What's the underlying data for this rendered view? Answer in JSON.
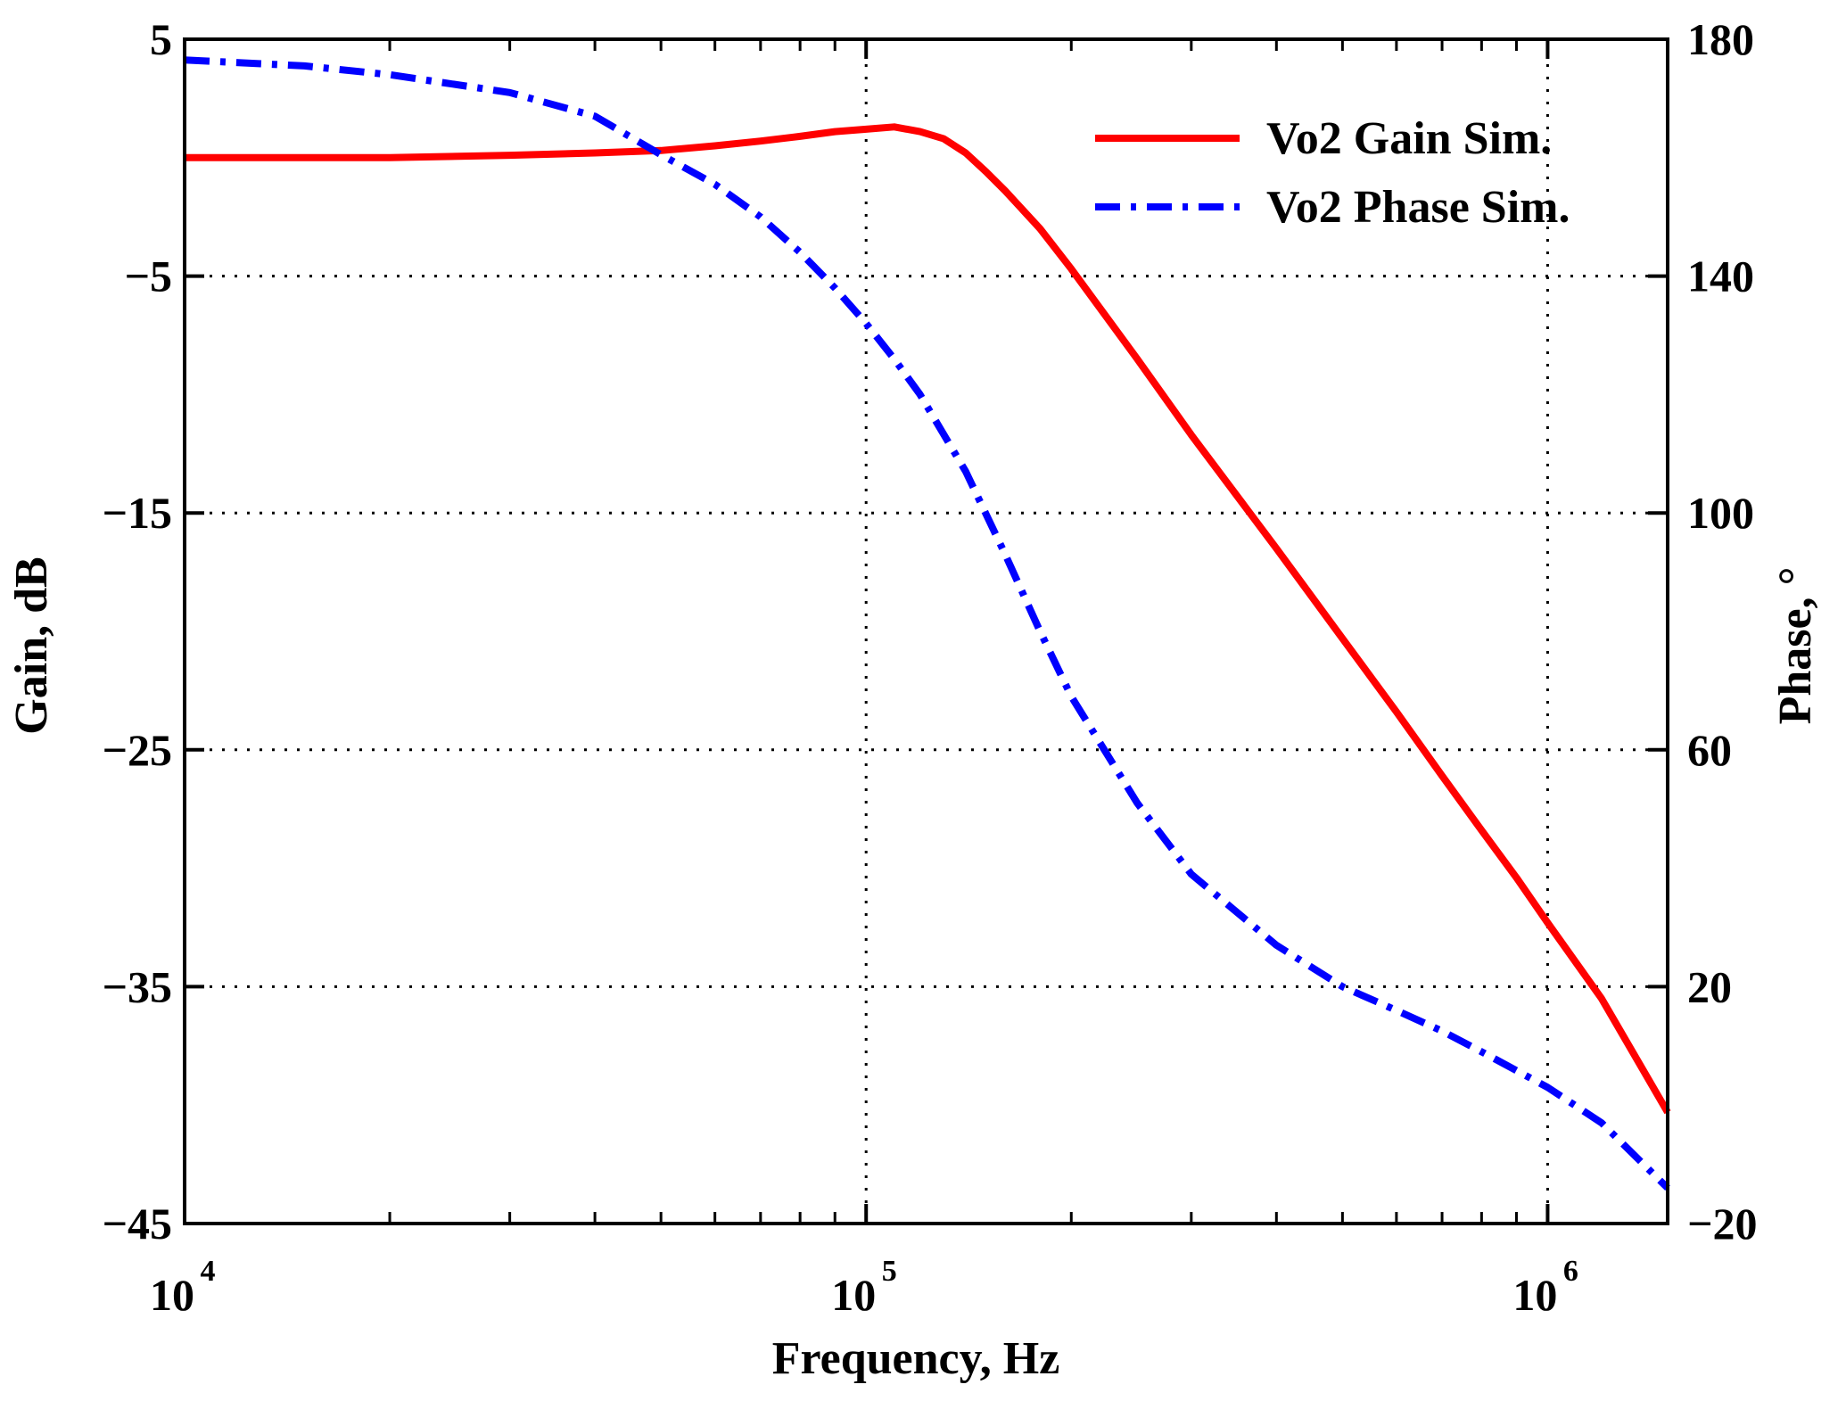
{
  "chart_data": {
    "type": "line",
    "xlabel": "Frequency, Hz",
    "ylabel_left": "Gain, dB",
    "ylabel_right": "Phase, °",
    "xscale": "log",
    "xlim": [
      10000,
      1500000
    ],
    "ylim_left": [
      -45,
      5
    ],
    "ylim_right": [
      -20,
      180
    ],
    "grid": true,
    "legend_position": "top-right",
    "x_ticks": [
      {
        "base": "10",
        "exp": "4",
        "value": 10000
      },
      {
        "base": "10",
        "exp": "5",
        "value": 100000
      },
      {
        "base": "10",
        "exp": "6",
        "value": 1000000
      }
    ],
    "y_left_ticks": [
      {
        "label": "5",
        "value": 5
      },
      {
        "label": "−5",
        "value": -5
      },
      {
        "label": "−15",
        "value": -15
      },
      {
        "label": "−25",
        "value": -25
      },
      {
        "label": "−35",
        "value": -35
      },
      {
        "label": "−45",
        "value": -45
      }
    ],
    "y_right_ticks": [
      {
        "label": "180",
        "value": 180
      },
      {
        "label": "140",
        "value": 140
      },
      {
        "label": "100",
        "value": 100
      },
      {
        "label": "60",
        "value": 60
      },
      {
        "label": "20",
        "value": 20
      },
      {
        "label": "−20",
        "value": -20
      }
    ],
    "series": [
      {
        "name": "Vo2 Gain Sim.",
        "axis": "left",
        "color": "#ff0000",
        "style": "solid",
        "x": [
          10000,
          15000,
          20000,
          30000,
          40000,
          50000,
          60000,
          70000,
          80000,
          90000,
          100000,
          110000,
          120000,
          130000,
          140000,
          150000,
          160000,
          180000,
          200000,
          250000,
          300000,
          400000,
          500000,
          600000,
          700000,
          800000,
          900000,
          1000000,
          1200000,
          1500000
        ],
        "values": [
          0.0,
          0.0,
          0.0,
          0.1,
          0.2,
          0.3,
          0.5,
          0.7,
          0.9,
          1.1,
          1.2,
          1.3,
          1.1,
          0.8,
          0.2,
          -0.6,
          -1.4,
          -3.0,
          -4.7,
          -8.5,
          -11.7,
          -16.5,
          -20.3,
          -23.4,
          -26.1,
          -28.4,
          -30.4,
          -32.3,
          -35.5,
          -40.3
        ]
      },
      {
        "name": "Vo2 Phase Sim.",
        "axis": "right",
        "color": "#0000ff",
        "style": "dashdot",
        "x": [
          10000,
          15000,
          20000,
          30000,
          40000,
          50000,
          60000,
          70000,
          80000,
          90000,
          100000,
          110000,
          120000,
          140000,
          160000,
          180000,
          200000,
          250000,
          300000,
          400000,
          500000,
          600000,
          700000,
          800000,
          1000000,
          1200000,
          1500000
        ],
        "values": [
          176.5,
          175.5,
          174,
          171,
          167,
          160.5,
          155.5,
          150,
          144,
          138,
          132,
          126,
          120,
          107,
          93,
          80,
          69,
          51,
          39,
          27,
          20,
          16,
          12.5,
          9,
          3,
          -3,
          -14
        ]
      }
    ]
  }
}
